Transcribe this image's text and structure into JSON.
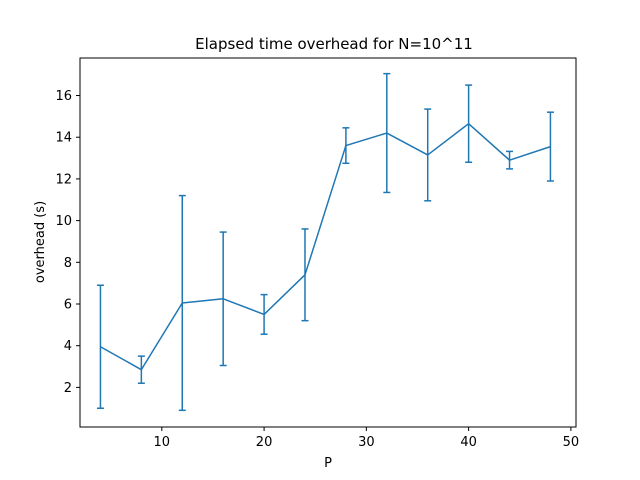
{
  "chart_data": {
    "type": "line",
    "title": "Elapsed time overhead for N=10^11",
    "xlabel": "P",
    "ylabel": "overhead (s)",
    "xlim": [
      2,
      50.5
    ],
    "ylim": [
      0.1,
      17.8
    ],
    "xticks": [
      10,
      20,
      30,
      40,
      50
    ],
    "yticks": [
      2,
      4,
      6,
      8,
      10,
      12,
      14,
      16
    ],
    "grid": false,
    "line_color": "#1f77b4",
    "series": [
      {
        "x": [
          4,
          8,
          12,
          16,
          20,
          24,
          28,
          32,
          36,
          40,
          44,
          48
        ],
        "y": [
          3.95,
          2.85,
          6.05,
          6.25,
          5.5,
          7.4,
          13.6,
          14.2,
          13.15,
          14.65,
          12.9,
          13.55
        ],
        "err": [
          2.95,
          0.65,
          5.15,
          3.2,
          0.95,
          2.2,
          0.85,
          2.85,
          2.2,
          1.85,
          0.42,
          1.65
        ]
      }
    ]
  }
}
